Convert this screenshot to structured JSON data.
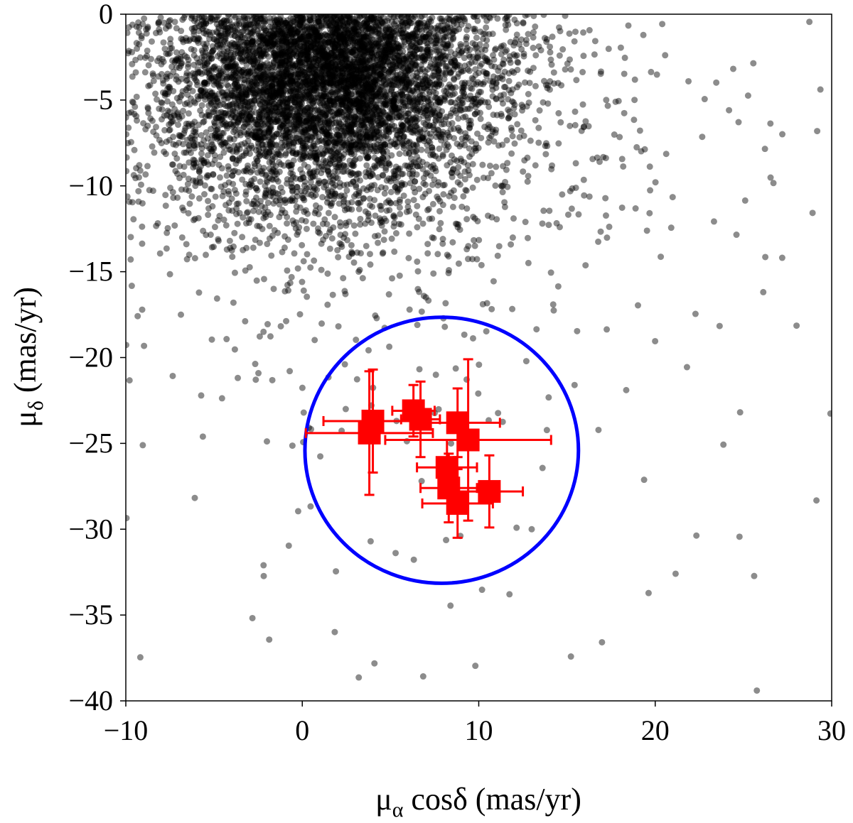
{
  "chart_data": {
    "type": "scatter",
    "title": "",
    "xlabel": {
      "main": "μ",
      "sub": "α",
      "rest": " cosδ (mas/yr)"
    },
    "ylabel": {
      "main": "μ",
      "sub": "δ",
      "rest": " (mas/yr)"
    },
    "xlim": [
      -10,
      30
    ],
    "ylim": [
      -40,
      0
    ],
    "xticks": [
      -10,
      0,
      10,
      20,
      30
    ],
    "yticks": [
      0,
      -5,
      -10,
      -15,
      -20,
      -25,
      -30,
      -35,
      -40
    ],
    "xtick_labels": [
      "−10",
      "0",
      "10",
      "20",
      "30"
    ],
    "ytick_labels": [
      "0",
      "−5",
      "−10",
      "−15",
      "−20",
      "−25",
      "−30",
      "−35",
      "−40"
    ],
    "grid": false,
    "field_stars": {
      "color": "#000000",
      "opacity": 0.45,
      "count": 9000,
      "center": [
        1.5,
        -3.0
      ],
      "core_scale": 4.0,
      "seed": 7
    },
    "selection_circle": {
      "color": "#0000ff",
      "center": [
        7.9,
        -25.4
      ],
      "radius": 7.75
    },
    "members": {
      "color": "#ff0000",
      "points": [
        {
          "x": 3.8,
          "y": -24.4,
          "xerr": 3.6,
          "yerr": 3.6
        },
        {
          "x": 4.0,
          "y": -23.7,
          "xerr": 2.8,
          "yerr": 3.0
        },
        {
          "x": 6.3,
          "y": -23.1,
          "xerr": 1.2,
          "yerr": 1.5
        },
        {
          "x": 6.7,
          "y": -23.6,
          "xerr": 1.1,
          "yerr": 2.2
        },
        {
          "x": 8.8,
          "y": -23.8,
          "xerr": 2.4,
          "yerr": 2.0
        },
        {
          "x": 9.4,
          "y": -24.8,
          "xerr": 4.7,
          "yerr": 4.7
        },
        {
          "x": 8.2,
          "y": -26.4,
          "xerr": 1.7,
          "yerr": 1.6
        },
        {
          "x": 8.3,
          "y": -27.6,
          "xerr": 1.6,
          "yerr": 2.0
        },
        {
          "x": 8.8,
          "y": -28.5,
          "xerr": 2.0,
          "yerr": 2.0
        },
        {
          "x": 10.6,
          "y": -27.8,
          "xerr": 1.9,
          "yerr": 2.1
        }
      ]
    }
  }
}
